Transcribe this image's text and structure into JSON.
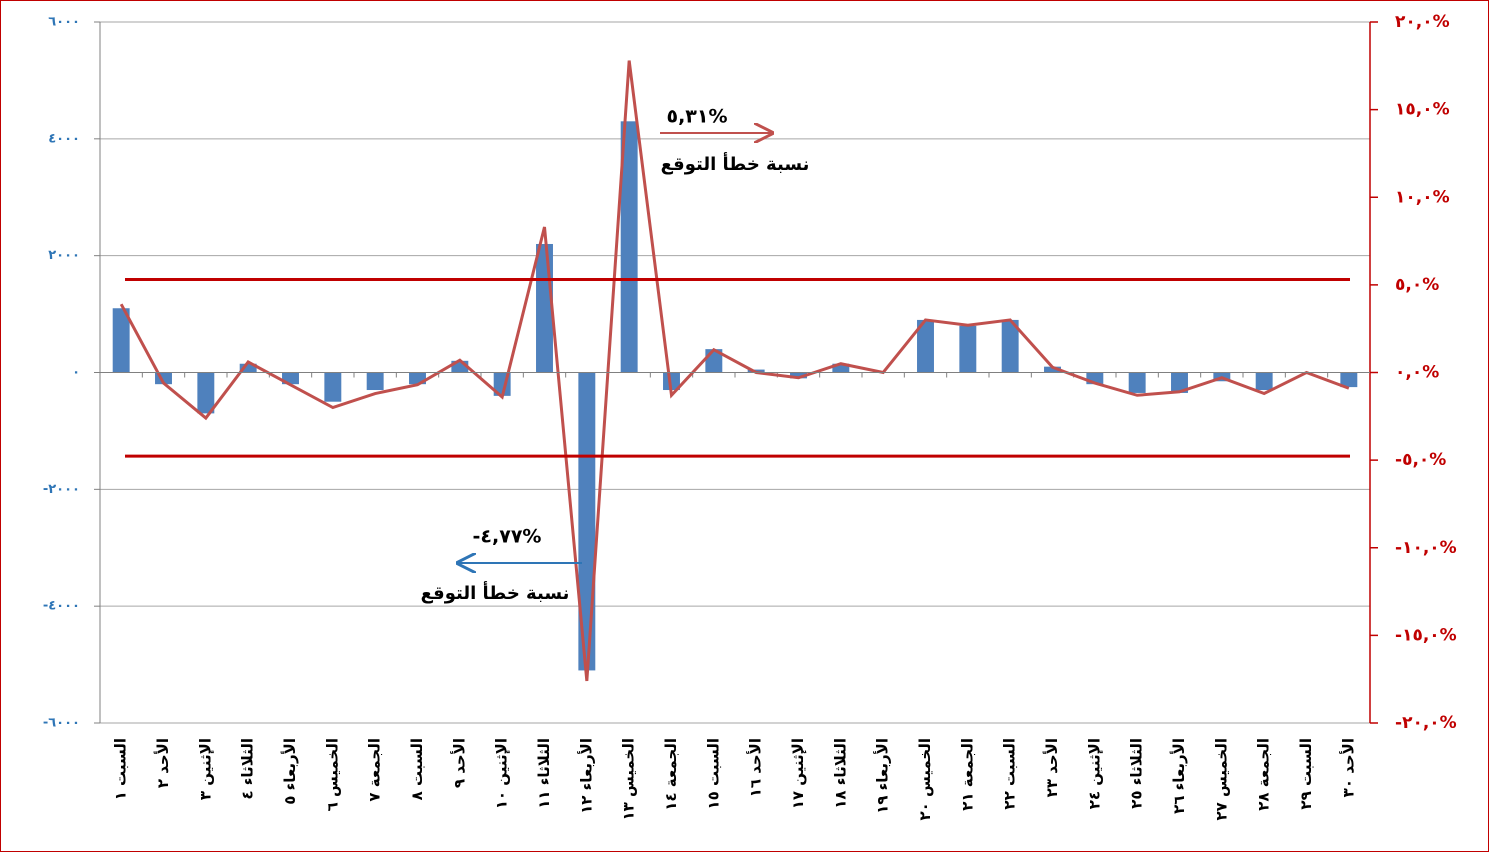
{
  "chart_data": {
    "type": "bar_line",
    "categories": [
      "السبت ١",
      "الأحد ٢",
      "الإثنين ٣",
      "الثلاثاء ٤",
      "الأربعاء ٥",
      "الخميس ٦",
      "الجمعة ٧",
      "السبت ٨",
      "الأحد ٩",
      "الإثنين ١٠",
      "الثلاثاء ١١",
      "الأربعاء ١٢",
      "الخميس ١٣",
      "الجمعة ١٤",
      "السبت ١٥",
      "الأحد ١٦",
      "الإثنين ١٧",
      "الثلاثاء ١٨",
      "الأربعاء ١٩",
      "الخميس ٢٠",
      "الجمعة ٢١",
      "السبت ٢٢",
      "الأحد ٢٣",
      "الإثنين ٢٤",
      "الثلاثاء ٢٥",
      "الأربعاء ٢٦",
      "الخميس ٢٧",
      "الجمعة ٢٨",
      "السبت ٢٩",
      "الأحد ٣٠"
    ],
    "series": [
      {
        "type": "bar",
        "color": "#4f81bd",
        "axis": "y",
        "values": [
          1100,
          -200,
          -700,
          150,
          -200,
          -500,
          -300,
          -200,
          200,
          -400,
          2200,
          -5100,
          4300,
          -300,
          400,
          50,
          -100,
          150,
          0,
          900,
          800,
          900,
          100,
          -200,
          -350,
          -350,
          -150,
          -300,
          0,
          -250
        ]
      },
      {
        "type": "line",
        "color": "#c0504d",
        "axis": "y2",
        "values": [
          3.9,
          -0.6,
          -2.6,
          0.6,
          -0.7,
          -2.0,
          -1.2,
          -0.7,
          0.7,
          -1.4,
          8.3,
          -17.6,
          17.8,
          -1.3,
          1.3,
          0,
          -0.3,
          0.5,
          0,
          3.0,
          2.7,
          3.0,
          0.3,
          -0.6,
          -1.3,
          -1.1,
          -0.3,
          -1.2,
          0,
          -0.9
        ]
      }
    ],
    "ylim": [
      -6000,
      6000
    ],
    "yticks": [
      {
        "value": 6000,
        "label": "٦٠٠٠"
      },
      {
        "value": 4000,
        "label": "٤٠٠٠"
      },
      {
        "value": 2000,
        "label": "٢٠٠٠"
      },
      {
        "value": 0,
        "label": "٠"
      },
      {
        "value": -2000,
        "label": "-٢٠٠٠"
      },
      {
        "value": -4000,
        "label": "-٤٠٠٠"
      },
      {
        "value": -6000,
        "label": "-٦٠٠٠"
      }
    ],
    "y2lim": [
      -20,
      20
    ],
    "y2ticks": [
      {
        "value": 20,
        "label": "٢٠,٠%"
      },
      {
        "value": 15,
        "label": "١٥,٠%"
      },
      {
        "value": 10,
        "label": "١٠,٠%"
      },
      {
        "value": 5,
        "label": "٥,٠%"
      },
      {
        "value": 0,
        "label": "٠,٠%"
      },
      {
        "value": -5,
        "label": "-٥,٠%"
      },
      {
        "value": -10,
        "label": "-١٠,٠%"
      },
      {
        "value": -15,
        "label": "-١٥,٠%"
      },
      {
        "value": -20,
        "label": "-٢٠,٠%"
      }
    ],
    "grid": true,
    "thresholds": [
      {
        "value": 5.31,
        "label": "٥,٣١%",
        "text": "نسبة خطأ التوقع",
        "color": "#c00000",
        "arrow_color": "#c0504d"
      },
      {
        "value": -4.77,
        "label": "-٤,٧٧%",
        "text": "نسبة خطأ التوقع",
        "color": "#c00000",
        "arrow_color": "#2e75b6"
      }
    ]
  }
}
